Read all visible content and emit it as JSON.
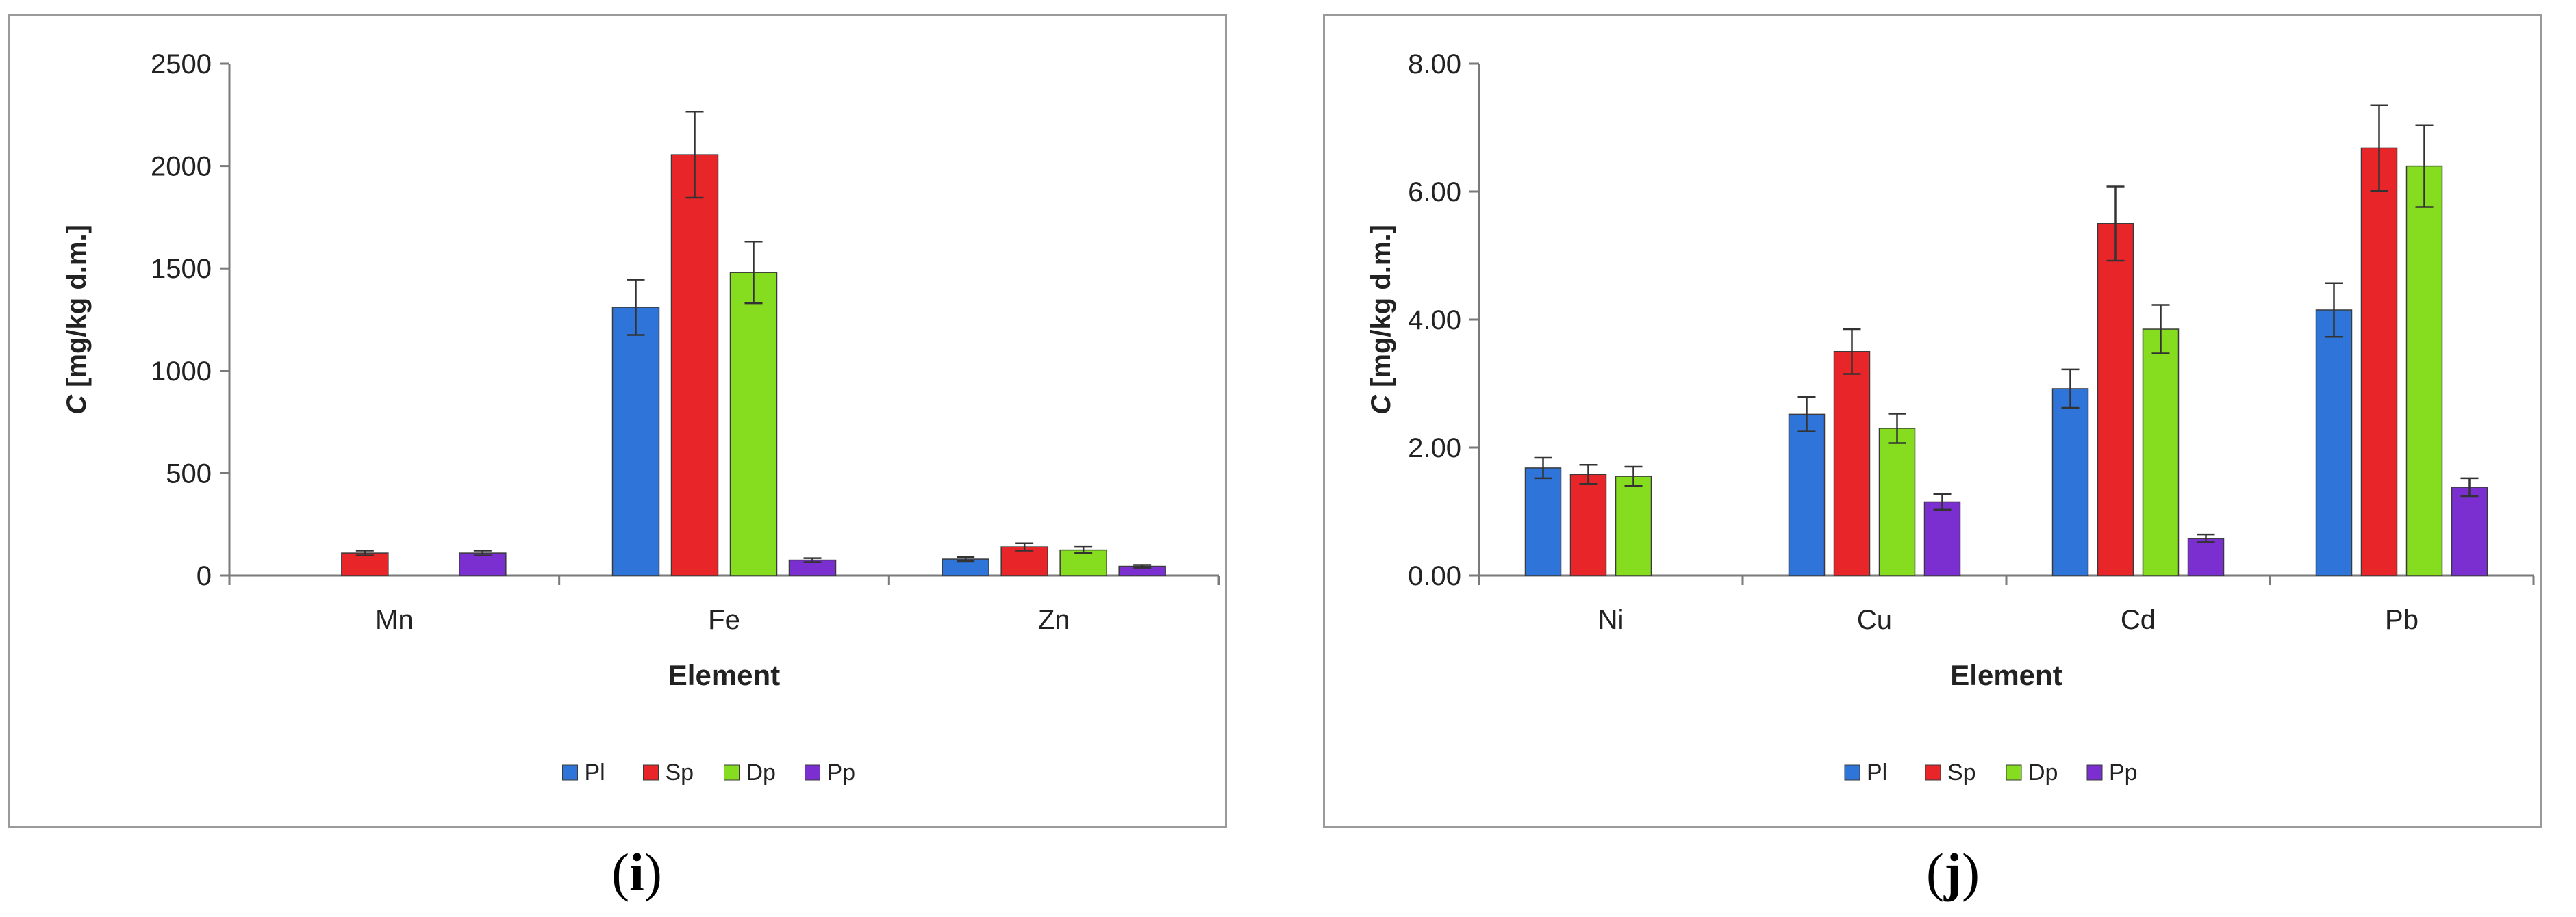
{
  "colors": {
    "Pl": "#2f74d9",
    "Sp": "#e8262a",
    "Dp": "#86dc1e",
    "Pp": "#7b2fd1"
  },
  "chart_data": [
    {
      "type": "bar",
      "panel_label": "i",
      "xlabel": "Element",
      "ylabel_italic": "C",
      "ylabel_unit": "[mg/kg d.m.]",
      "ylim": [
        0,
        2500
      ],
      "yticks": [
        "0",
        "500",
        "1000",
        "1500",
        "2000",
        "2500"
      ],
      "ytick_values": [
        0,
        500,
        1000,
        1500,
        2000,
        2500
      ],
      "categories": [
        "Mn",
        "Fe",
        "Zn"
      ],
      "legend_position": "bottom",
      "series": [
        {
          "name": "Pl",
          "values": [
            0,
            1310,
            80
          ],
          "errors": [
            0,
            135,
            10
          ]
        },
        {
          "name": "Sp",
          "values": [
            110,
            2055,
            140
          ],
          "errors": [
            12,
            210,
            18
          ]
        },
        {
          "name": "Dp",
          "values": [
            0,
            1480,
            125
          ],
          "errors": [
            0,
            150,
            15
          ]
        },
        {
          "name": "Pp",
          "values": [
            110,
            75,
            45
          ],
          "errors": [
            12,
            10,
            7
          ]
        }
      ]
    },
    {
      "type": "bar",
      "panel_label": "j",
      "xlabel": "Element",
      "ylabel_italic": "C",
      "ylabel_unit": "[mg/kg d.m.]",
      "ylim": [
        0,
        8
      ],
      "yticks": [
        "0.00",
        "2.00",
        "4.00",
        "6.00",
        "8.00"
      ],
      "ytick_values": [
        0,
        2,
        4,
        6,
        8
      ],
      "categories": [
        "Ni",
        "Cu",
        "Cd",
        "Pb"
      ],
      "legend_position": "bottom",
      "series": [
        {
          "name": "Pl",
          "values": [
            1.68,
            2.52,
            2.92,
            4.15
          ],
          "errors": [
            0.16,
            0.27,
            0.3,
            0.42
          ]
        },
        {
          "name": "Sp",
          "values": [
            1.58,
            3.5,
            5.5,
            6.68
          ],
          "errors": [
            0.15,
            0.35,
            0.58,
            0.67
          ]
        },
        {
          "name": "Dp",
          "values": [
            1.55,
            2.3,
            3.85,
            6.4
          ],
          "errors": [
            0.15,
            0.23,
            0.38,
            0.64
          ]
        },
        {
          "name": "Pp",
          "values": [
            0,
            1.15,
            0.58,
            1.38
          ],
          "errors": [
            0,
            0.12,
            0.06,
            0.14
          ]
        }
      ]
    }
  ]
}
